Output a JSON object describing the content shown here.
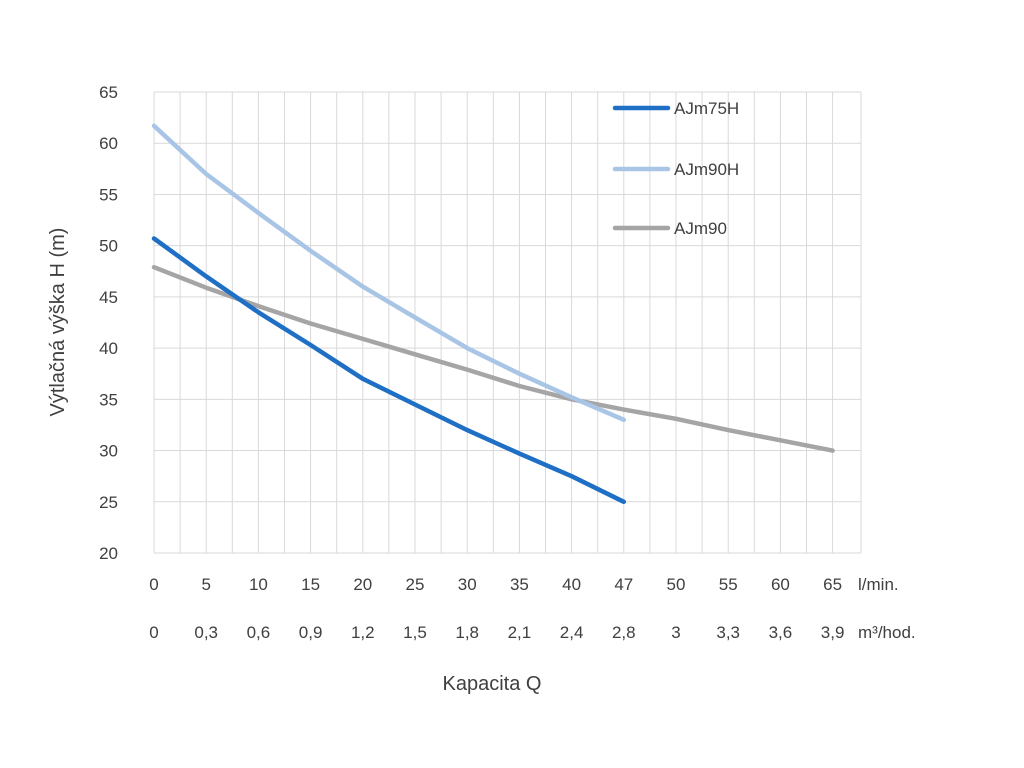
{
  "chart_data": {
    "type": "line",
    "xlabel": "Kapacita Q",
    "ylabel": "Výtlačná výška H (m)",
    "ylim": [
      20,
      65
    ],
    "yticks": [
      "20",
      "25",
      "30",
      "35",
      "40",
      "45",
      "50",
      "55",
      "60",
      "65"
    ],
    "x_ticks_lmin": [
      "0",
      "5",
      "10",
      "15",
      "20",
      "25",
      "30",
      "35",
      "40",
      "47",
      "50",
      "55",
      "60",
      "65"
    ],
    "x_ticks_m3h": [
      "0",
      "0,3",
      "0,6",
      "0,9",
      "1,2",
      "1,5",
      "1,8",
      "2,1",
      "2,4",
      "2,8",
      "3",
      "3,3",
      "3,6",
      "3,9"
    ],
    "x_unit_lmin": "l/min.",
    "x_unit_m3h": "m³/hod.",
    "grid": true,
    "legend_position": "top-right",
    "series": [
      {
        "name": "AJm75H",
        "color": "#1f6fc5",
        "x": [
          0,
          5,
          10,
          15,
          20,
          25,
          30,
          35,
          40,
          47
        ],
        "y": [
          50.7,
          47,
          43.5,
          40.3,
          37,
          34.5,
          32,
          29.7,
          27.5,
          25
        ]
      },
      {
        "name": "AJm90H",
        "color": "#a9c5e6",
        "x": [
          0,
          5,
          10,
          15,
          20,
          25,
          30,
          35,
          40,
          47
        ],
        "y": [
          61.7,
          57,
          53.2,
          49.5,
          46,
          43,
          40,
          37.5,
          35.2,
          33
        ]
      },
      {
        "name": "AJm90",
        "color": "#a5a5a5",
        "x": [
          0,
          5,
          10,
          15,
          20,
          25,
          30,
          35,
          40,
          47,
          50,
          55,
          60,
          65
        ],
        "y": [
          47.9,
          45.9,
          44.1,
          42.4,
          40.9,
          39.4,
          37.9,
          36.3,
          35,
          34,
          33.1,
          32,
          31,
          30
        ]
      }
    ]
  }
}
